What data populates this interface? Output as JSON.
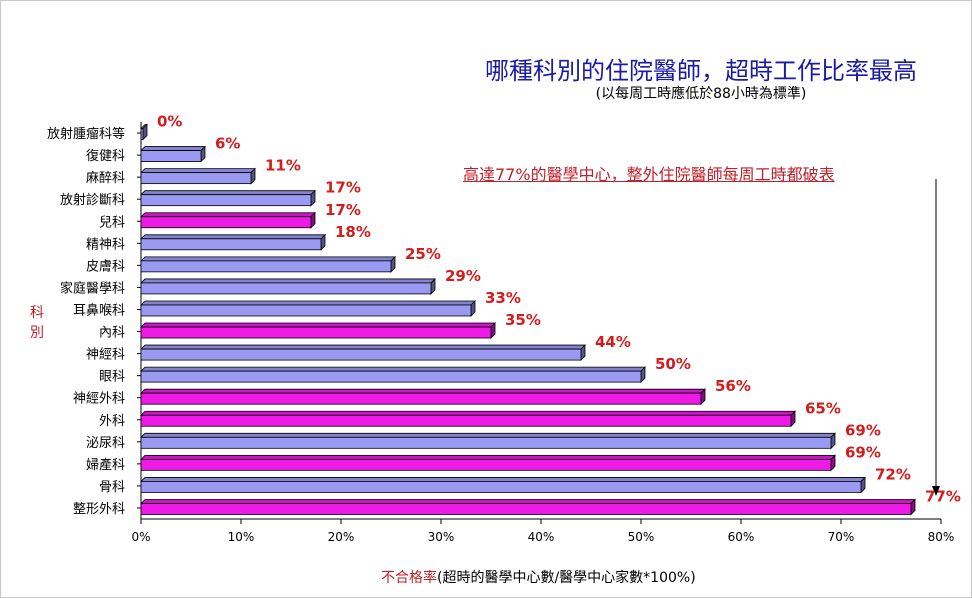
{
  "chart_data": {
    "type": "bar",
    "orientation": "horizontal",
    "title": "哪種科別的住院醫師，超時工作比率最高",
    "subtitle": "(以每周工時應低於88小時為標準)",
    "annotation": "高達77%的醫學中心，整外住院醫師每周工時都破表",
    "ylabel": "科別",
    "xlabel_red": "不合格率",
    "xlabel_rest": "(超時的醫學中心數/醫學中心家數*100%)",
    "xlim": [
      0,
      80
    ],
    "xticks": [
      "0%",
      "10%",
      "20%",
      "30%",
      "40%",
      "50%",
      "60%",
      "70%",
      "80%"
    ],
    "grid": false,
    "colors": {
      "normal": "#9a9af2",
      "highlight": "#ee1ae6",
      "label": "#d41c1c",
      "title": "#1a1aa6"
    },
    "categories": [
      "放射腫瘤科等",
      "復健科",
      "麻醉科",
      "放射診斷科",
      "兒科",
      "精神科",
      "皮膚科",
      "家庭醫學科",
      "耳鼻喉科",
      "內科",
      "神經科",
      "眼科",
      "神經外科",
      "外科",
      "泌尿科",
      "婦產科",
      "骨科",
      "整形外科"
    ],
    "values": [
      0,
      6,
      11,
      17,
      17,
      18,
      25,
      29,
      33,
      35,
      44,
      50,
      56,
      65,
      69,
      69,
      72,
      77
    ],
    "value_labels": [
      "0%",
      "6%",
      "11%",
      "17%",
      "17%",
      "18%",
      "25%",
      "29%",
      "33%",
      "35%",
      "44%",
      "50%",
      "56%",
      "65%",
      "69%",
      "69%",
      "72%",
      "77%"
    ],
    "highlighted": [
      false,
      false,
      false,
      false,
      true,
      false,
      false,
      false,
      false,
      true,
      false,
      false,
      true,
      true,
      false,
      true,
      false,
      true
    ]
  }
}
